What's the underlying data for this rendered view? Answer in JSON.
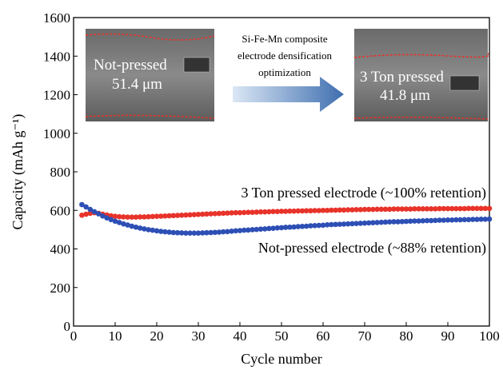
{
  "chart_data": {
    "type": "scatter",
    "xlabel": "Cycle number",
    "ylabel": "Capacity (mAh g⁻¹)",
    "xlim": [
      0,
      100
    ],
    "ylim": [
      0,
      1600
    ],
    "xticks": [
      0,
      10,
      20,
      30,
      40,
      50,
      60,
      70,
      80,
      90,
      100
    ],
    "yticks": [
      0,
      200,
      400,
      600,
      800,
      1000,
      1200,
      1400,
      1600
    ],
    "x": [
      2,
      3,
      4,
      5,
      6,
      7,
      8,
      9,
      10,
      11,
      12,
      13,
      14,
      15,
      16,
      17,
      18,
      19,
      20,
      21,
      22,
      23,
      24,
      25,
      26,
      27,
      28,
      29,
      30,
      31,
      32,
      33,
      34,
      35,
      36,
      37,
      38,
      39,
      40,
      41,
      42,
      43,
      44,
      45,
      46,
      47,
      48,
      49,
      50,
      51,
      52,
      53,
      54,
      55,
      56,
      57,
      58,
      59,
      60,
      61,
      62,
      63,
      64,
      65,
      66,
      67,
      68,
      69,
      70,
      71,
      72,
      73,
      74,
      75,
      76,
      77,
      78,
      79,
      80,
      81,
      82,
      83,
      84,
      85,
      86,
      87,
      88,
      89,
      90,
      91,
      92,
      93,
      94,
      95,
      96,
      97,
      98,
      99,
      100
    ],
    "series": [
      {
        "name": "3 Ton pressed electrode (~100% retention)",
        "color": "#e8332a",
        "values": [
          575,
          580,
          585,
          588,
          585,
          580,
          576,
          572,
          569,
          567,
          566,
          565,
          565,
          565,
          566,
          566,
          567,
          568,
          569,
          570,
          571,
          572,
          573,
          574,
          575,
          576,
          577,
          578,
          579,
          580,
          581,
          582,
          583,
          584,
          585,
          586,
          587,
          588,
          588,
          589,
          590,
          590,
          591,
          592,
          592,
          593,
          594,
          594,
          595,
          595,
          596,
          596,
          597,
          597,
          598,
          598,
          599,
          599,
          600,
          600,
          601,
          601,
          602,
          602,
          603,
          603,
          604,
          604,
          605,
          605,
          605,
          606,
          606,
          606,
          606,
          607,
          607,
          607,
          607,
          607,
          608,
          608,
          608,
          608,
          608,
          608,
          609,
          609,
          609,
          609,
          609,
          609,
          609,
          610,
          610,
          610,
          610,
          610,
          610
        ]
      },
      {
        "name": "Not-pressed electrode (~88% retention)",
        "color": "#2d4fb5",
        "values": [
          630,
          618,
          605,
          593,
          582,
          571,
          561,
          552,
          544,
          537,
          530,
          524,
          518,
          513,
          508,
          504,
          500,
          497,
          494,
          491,
          489,
          487,
          485,
          484,
          483,
          482,
          482,
          482,
          482,
          483,
          484,
          485,
          486,
          487,
          489,
          490,
          492,
          494,
          495,
          497,
          498,
          500,
          501,
          503,
          504,
          506,
          507,
          509,
          510,
          512,
          513,
          514,
          516,
          517,
          518,
          520,
          521,
          522,
          523,
          525,
          526,
          527,
          528,
          529,
          530,
          531,
          532,
          533,
          534,
          535,
          536,
          537,
          538,
          539,
          540,
          541,
          541,
          542,
          543,
          544,
          545,
          545,
          546,
          547,
          547,
          548,
          549,
          549,
          550,
          550,
          551,
          551,
          552,
          552,
          553,
          553,
          554,
          554,
          555
        ]
      }
    ],
    "inset": {
      "arrow_text": [
        "Si-Fe-Mn composite",
        "electrode densification",
        "optimization"
      ],
      "left_image": [
        "Not-pressed",
        "51.4 μm"
      ],
      "right_image": [
        "3 Ton pressed",
        "41.8 μm"
      ]
    }
  }
}
